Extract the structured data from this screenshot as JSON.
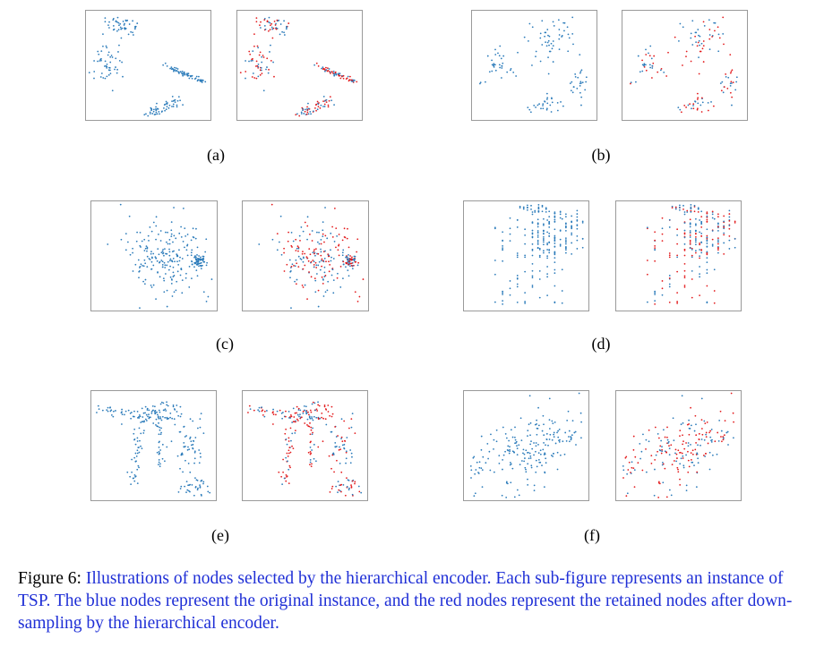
{
  "figure": {
    "caption_prefix": "Figure 6:",
    "caption_body": "Illustrations of nodes selected by the hierarchical encoder. Each sub-figure represents an instance of TSP. The blue nodes represent the original instance, and the red nodes represent the retained nodes after down-sampling by the hierarchical encoder."
  },
  "colors": {
    "original": "#2b7bba",
    "retained": "#e31a1c",
    "caption_text": "#1f2fd6"
  },
  "subfigures": [
    {
      "id": "a",
      "label": "(a)",
      "distribution": "four-clusters-with-diagonal-lines"
    },
    {
      "id": "b",
      "label": "(b)",
      "distribution": "four-loose-clusters"
    },
    {
      "id": "c",
      "label": "(c)",
      "distribution": "dense-center-with-grid-block"
    },
    {
      "id": "d",
      "label": "(d)",
      "distribution": "grid-aligned-rows-and-columns"
    },
    {
      "id": "e",
      "label": "(e)",
      "distribution": "clustered-with-spokes"
    },
    {
      "id": "f",
      "label": "(f)",
      "distribution": "uniform-elliptical-spread"
    }
  ]
}
